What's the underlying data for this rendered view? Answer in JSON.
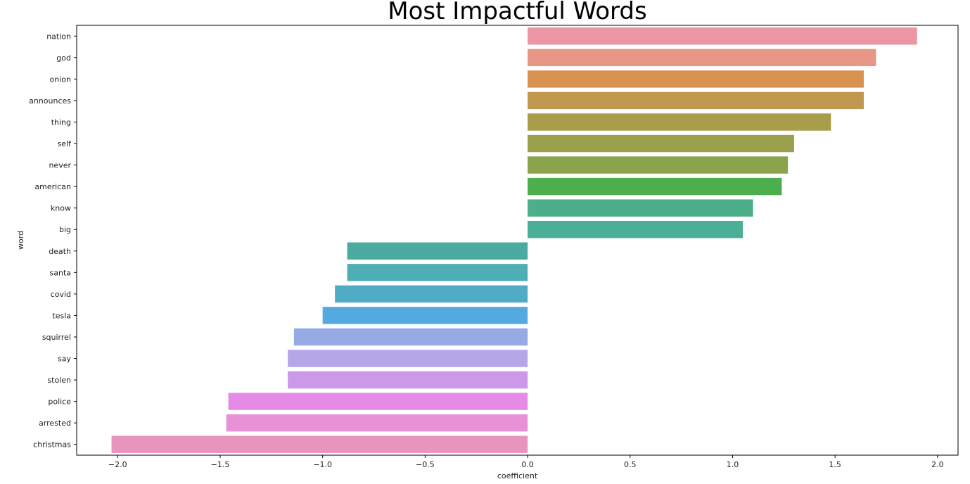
{
  "chart_data": {
    "type": "bar",
    "orientation": "horizontal",
    "title": "Most Impactful Words",
    "xlabel": "coefficient",
    "ylabel": "word",
    "xlim": [
      -2.2,
      2.1
    ],
    "xticks": [
      -2.0,
      -1.5,
      -1.0,
      -0.5,
      0.0,
      0.5,
      1.0,
      1.5,
      2.0
    ],
    "xtick_labels": [
      "−2.0",
      "−1.5",
      "−1.0",
      "−0.5",
      "0.0",
      "0.5",
      "1.0",
      "1.5",
      "2.0"
    ],
    "grid": false,
    "categories": [
      "nation",
      "god",
      "onion",
      "announces",
      "thing",
      "self",
      "never",
      "american",
      "know",
      "big",
      "death",
      "santa",
      "covid",
      "tesla",
      "squirrel",
      "say",
      "stolen",
      "police",
      "arrested",
      "christmas"
    ],
    "values": [
      1.9,
      1.7,
      1.64,
      1.64,
      1.48,
      1.3,
      1.27,
      1.24,
      1.1,
      1.05,
      -0.88,
      -0.88,
      -0.94,
      -1.0,
      -1.14,
      -1.17,
      -1.17,
      -1.46,
      -1.47,
      -2.03
    ],
    "colors": [
      "#ea96a3",
      "#e89685",
      "#d7924f",
      "#c0984f",
      "#a99c4b",
      "#999f4b",
      "#8ba34b",
      "#4cae4c",
      "#4daf89",
      "#4aaf96",
      "#4baba0",
      "#4daeb6",
      "#4facc4",
      "#54a9df",
      "#96abe6",
      "#b5a6ea",
      "#cc98e8",
      "#e58ae6",
      "#e891d6",
      "#e994bd"
    ]
  }
}
